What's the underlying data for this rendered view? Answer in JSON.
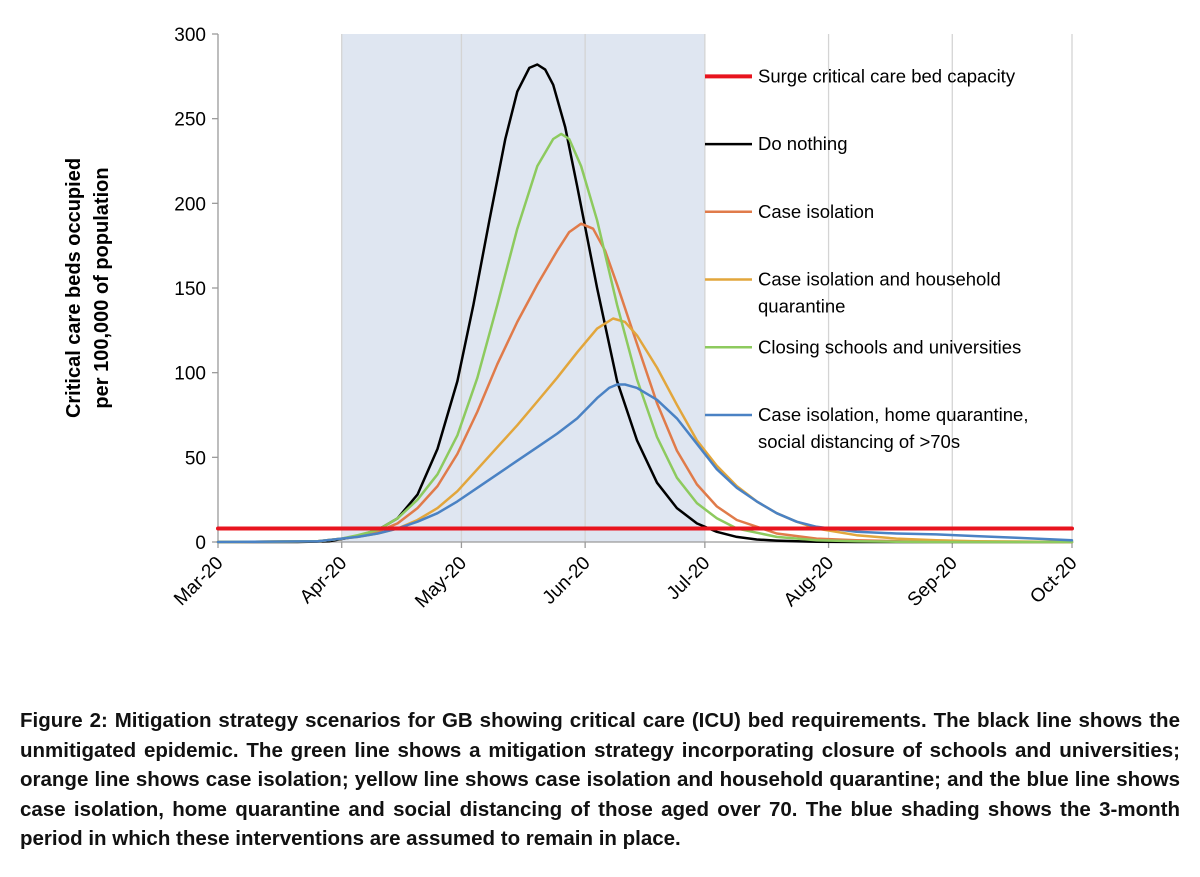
{
  "chart_data": {
    "type": "line",
    "title": "",
    "xlabel": "",
    "ylabel": "Critical care beds occupied per 100,000 of population",
    "ylabel_lines": [
      "Critical care beds occupied",
      "per 100,000 of population"
    ],
    "ylim": [
      0,
      300
    ],
    "y_ticks": [
      0,
      50,
      100,
      150,
      200,
      250,
      300
    ],
    "x_range_days": [
      0,
      214
    ],
    "categories": [
      "Mar-20",
      "Apr-20",
      "May-20",
      "Jun-20",
      "Jul-20",
      "Aug-20",
      "Sep-20",
      "Oct-20"
    ],
    "category_days": [
      0,
      31,
      61,
      92,
      122,
      153,
      184,
      214
    ],
    "grid": "vertical",
    "legend_position": "right",
    "shaded_interval": {
      "label": "3-month intervention period",
      "start_day": 31,
      "end_day": 122,
      "color": "#dfe6f1"
    },
    "series": [
      {
        "name": "Surge critical care bed capacity",
        "color": "#e8141e",
        "width": 4,
        "x": [
          0,
          214
        ],
        "values": [
          8,
          8
        ]
      },
      {
        "name": "Do nothing",
        "color": "#000000",
        "width": 2.5,
        "x": [
          0,
          20,
          28,
          34,
          40,
          45,
          50,
          55,
          60,
          64,
          68,
          72,
          75,
          78,
          80,
          82,
          84,
          87,
          90,
          95,
          100,
          105,
          110,
          115,
          120,
          125,
          130,
          135,
          140,
          145,
          150,
          160,
          170,
          180,
          214
        ],
        "values": [
          0,
          0,
          0.5,
          3,
          7,
          14,
          28,
          55,
          95,
          140,
          190,
          238,
          266,
          280,
          282,
          279,
          270,
          245,
          210,
          150,
          95,
          60,
          35,
          20,
          11,
          6,
          3,
          1.5,
          0.8,
          0.4,
          0.2,
          0,
          0,
          0,
          0
        ]
      },
      {
        "name": "Case isolation",
        "color": "#e07b4a",
        "width": 2.5,
        "x": [
          0,
          25,
          31,
          35,
          40,
          45,
          50,
          55,
          60,
          65,
          70,
          75,
          80,
          85,
          88,
          91,
          94,
          97,
          100,
          105,
          110,
          115,
          120,
          125,
          130,
          140,
          150,
          160,
          170,
          180,
          214
        ],
        "values": [
          0,
          0.5,
          2,
          3.5,
          6,
          11,
          20,
          33,
          52,
          77,
          105,
          130,
          152,
          172,
          183,
          188,
          185,
          172,
          152,
          117,
          82,
          54,
          34,
          21,
          13,
          5,
          2,
          1,
          0.5,
          0.2,
          0
        ]
      },
      {
        "name": "Case isolation and household quarantine",
        "color": "#e2a63c",
        "width": 2.5,
        "x": [
          0,
          25,
          31,
          35,
          40,
          45,
          50,
          55,
          60,
          65,
          70,
          75,
          80,
          85,
          90,
          95,
          99,
          102,
          105,
          110,
          115,
          120,
          125,
          130,
          135,
          140,
          145,
          150,
          160,
          170,
          180,
          190,
          200,
          214
        ],
        "values": [
          0,
          0.5,
          2,
          3,
          5,
          8,
          13,
          20,
          30,
          43,
          56,
          69,
          83,
          97,
          112,
          126,
          132,
          130,
          122,
          103,
          81,
          60,
          45,
          33,
          24,
          17,
          12,
          8,
          4,
          2,
          1,
          0.5,
          0.3,
          0
        ]
      },
      {
        "name": "Closing schools and universities",
        "color": "#8dca5e",
        "width": 2.5,
        "x": [
          0,
          25,
          31,
          35,
          40,
          45,
          50,
          55,
          60,
          65,
          70,
          75,
          80,
          84,
          86,
          88,
          91,
          95,
          100,
          105,
          110,
          115,
          120,
          125,
          130,
          140,
          150,
          160,
          170,
          180,
          214
        ],
        "values": [
          0,
          0.5,
          2,
          4,
          7,
          14,
          25,
          40,
          63,
          97,
          140,
          185,
          222,
          238,
          241,
          238,
          222,
          190,
          140,
          96,
          62,
          38,
          23,
          14,
          8,
          3,
          1,
          0.5,
          0.2,
          0,
          0
        ]
      },
      {
        "name": "Case isolation, home quarantine, social distancing of >70s",
        "color": "#4a82c4",
        "width": 2.5,
        "x": [
          0,
          25,
          31,
          35,
          40,
          45,
          50,
          55,
          60,
          65,
          70,
          75,
          80,
          85,
          90,
          95,
          98,
          100,
          102,
          105,
          110,
          115,
          120,
          125,
          130,
          135,
          140,
          145,
          150,
          160,
          170,
          180,
          190,
          200,
          214
        ],
        "values": [
          0,
          0.5,
          2,
          3,
          5,
          8,
          12,
          17,
          24,
          32,
          40,
          48,
          56,
          64,
          73,
          85,
          91,
          93,
          93,
          91,
          84,
          73,
          58,
          43,
          32,
          24,
          17,
          12,
          9,
          6,
          5,
          4.5,
          3.5,
          2.5,
          1
        ]
      }
    ],
    "legend": [
      {
        "label": "Surge critical care bed capacity",
        "color": "#e8141e",
        "value": 275
      },
      {
        "label": "Do nothing",
        "color": "#000000",
        "value": 235
      },
      {
        "label": "Case isolation",
        "color": "#e07b4a",
        "value": 195
      },
      {
        "label": "Case isolation and household quarantine",
        "color": "#e2a63c",
        "value": 155
      },
      {
        "label": "Closing schools and universities",
        "color": "#8dca5e",
        "value": 115
      },
      {
        "label": "Case isolation, home quarantine, social distancing of >70s",
        "color": "#4a82c4",
        "value": 75
      }
    ]
  },
  "caption": "Figure 2: Mitigation strategy scenarios for GB showing critical care (ICU) bed requirements. The black line shows the unmitigated epidemic. The green line shows a mitigation strategy incorporating closure of schools and universities; orange line shows case isolation; yellow line shows case isolation and household quarantine; and the blue line shows case isolation, home quarantine and social distancing of those aged over 70. The blue shading shows the 3-month period in which these interventions are assumed to remain in place."
}
